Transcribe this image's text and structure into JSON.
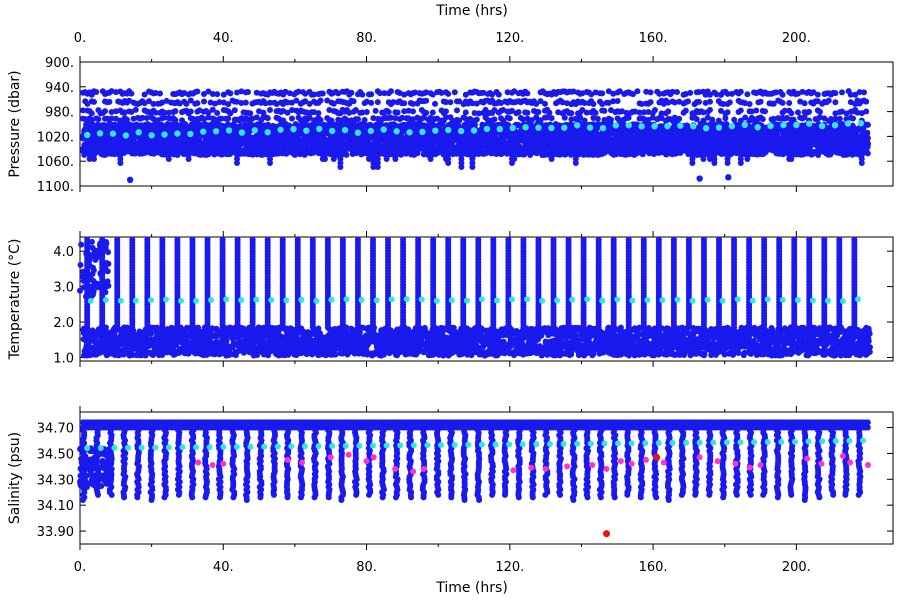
{
  "chart_data": [
    {
      "type": "scatter",
      "id": "pressure",
      "xlabel": "Time (hrs)",
      "ylabel": "Pressure (dbar)",
      "xlim": [
        0,
        220
      ],
      "ylim": [
        1100,
        900
      ],
      "y_inverted": true,
      "xticks": [
        0,
        40,
        80,
        120,
        160,
        200
      ],
      "xtick_labels": [
        "0.",
        "40.",
        "80.",
        "120.",
        "160.",
        "200."
      ],
      "yticks": [
        900,
        940,
        980,
        1020,
        1060,
        1100
      ],
      "ytick_labels": [
        "900.",
        "940.",
        "980.",
        "1020.",
        "1060.",
        "1100."
      ],
      "grid": false,
      "colors": {
        "primary": "#1a1aee",
        "highlight": "#33e6e6",
        "flag": "#ff33cc",
        "bad": "#ee1111"
      },
      "series": [
        {
          "role": "primary",
          "band_min": 1000,
          "band_max": 1050,
          "levels": [
            950,
            965,
            980,
            992
          ]
        },
        {
          "role": "highlight",
          "x": [
            5,
            30,
            60,
            90,
            120,
            150,
            180,
            200,
            220
          ],
          "y": [
            1018,
            1014,
            1010,
            1012,
            1006,
            1004,
            1004,
            1002,
            1000
          ]
        },
        {
          "role": "outlier",
          "x": [
            14,
            173,
            181
          ],
          "y": [
            1090,
            1088,
            1086
          ]
        }
      ]
    },
    {
      "type": "scatter",
      "id": "temperature",
      "xlabel": "",
      "ylabel": "Temperature (°C)",
      "xlim": [
        0,
        220
      ],
      "ylim": [
        0.9,
        4.4
      ],
      "xticks": [
        0,
        40,
        80,
        120,
        160,
        200
      ],
      "yticks": [
        1.0,
        2.0,
        3.0,
        4.0
      ],
      "ytick_labels": [
        "1.0",
        "2.0",
        "3.0",
        "4.0"
      ],
      "grid": false,
      "series": [
        {
          "role": "primary",
          "band_min": 1.05,
          "band_max": 1.85,
          "spike_max": 4.35
        },
        {
          "role": "highlight",
          "value": 2.62
        }
      ]
    },
    {
      "type": "scatter",
      "id": "salinity",
      "xlabel": "Time (hrs)",
      "ylabel": "Salinity (psu)",
      "xlim": [
        0,
        220
      ],
      "ylim": [
        33.8,
        34.82
      ],
      "xticks": [
        0,
        40,
        80,
        120,
        160,
        200
      ],
      "xtick_labels": [
        "0.",
        "40.",
        "80.",
        "120.",
        "160.",
        "200."
      ],
      "yticks": [
        33.9,
        34.1,
        34.3,
        34.5,
        34.7
      ],
      "ytick_labels": [
        "33.90",
        "34.10",
        "34.30",
        "34.50",
        "34.70"
      ],
      "grid": false,
      "series": [
        {
          "role": "primary",
          "top": 34.74,
          "band_max": 34.7,
          "spike_min": 34.18
        },
        {
          "role": "highlight",
          "x": [
            0,
            40,
            80,
            120,
            160,
            200,
            220
          ],
          "y": [
            34.54,
            34.55,
            34.56,
            34.57,
            34.58,
            34.59,
            34.6
          ]
        },
        {
          "role": "flag",
          "x": [
            33,
            37,
            40,
            58,
            62,
            70,
            75,
            80,
            82,
            88,
            93,
            96,
            121,
            126,
            130,
            136,
            143,
            147,
            151,
            154,
            158,
            163,
            173,
            178,
            183,
            187,
            190,
            203,
            207,
            213,
            215,
            220
          ],
          "y": [
            34.43,
            34.41,
            34.42,
            34.45,
            34.43,
            34.47,
            34.49,
            34.44,
            34.47,
            34.38,
            34.36,
            34.38,
            34.37,
            34.39,
            34.38,
            34.4,
            34.41,
            34.38,
            34.44,
            34.42,
            34.45,
            34.43,
            34.47,
            34.44,
            34.42,
            34.39,
            34.41,
            34.46,
            34.42,
            34.48,
            34.43,
            34.41
          ]
        },
        {
          "role": "bad",
          "x": [
            147,
            161
          ],
          "y": [
            33.88,
            34.47
          ]
        }
      ]
    }
  ]
}
